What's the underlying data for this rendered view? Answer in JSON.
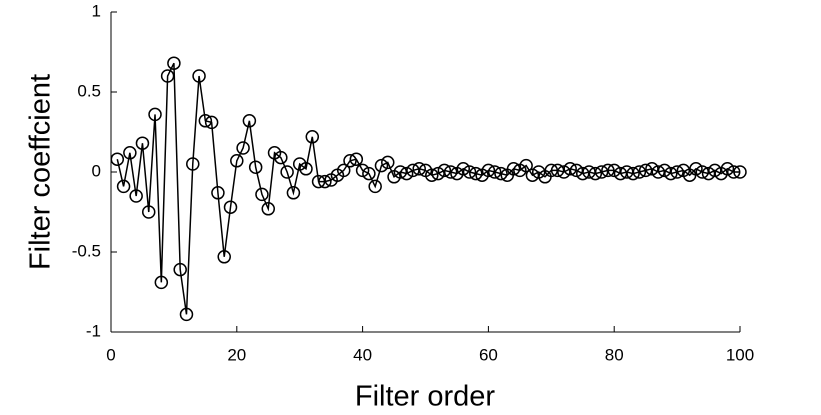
{
  "chart_data": {
    "type": "line",
    "xlabel": "Filter order",
    "ylabel": "Filter coeffcient",
    "x": [
      1,
      2,
      3,
      4,
      5,
      6,
      7,
      8,
      9,
      10,
      11,
      12,
      13,
      14,
      15,
      16,
      17,
      18,
      19,
      20,
      21,
      22,
      23,
      24,
      25,
      26,
      27,
      28,
      29,
      30,
      31,
      32,
      33,
      34,
      35,
      36,
      37,
      38,
      39,
      40,
      41,
      42,
      43,
      44,
      45,
      46,
      47,
      48,
      49,
      50,
      51,
      52,
      53,
      54,
      55,
      56,
      57,
      58,
      59,
      60,
      61,
      62,
      63,
      64,
      65,
      66,
      67,
      68,
      69,
      70,
      71,
      72,
      73,
      74,
      75,
      76,
      77,
      78,
      79,
      80,
      81,
      82,
      83,
      84,
      85,
      86,
      87,
      88,
      89,
      90,
      91,
      92,
      93,
      94,
      95,
      96,
      97,
      98,
      99,
      100
    ],
    "series": [
      {
        "name": "Filter coeffcient",
        "color": "#000000",
        "marker": "circle",
        "values": [
          0.08,
          -0.09,
          0.12,
          -0.15,
          0.18,
          -0.25,
          0.36,
          -0.69,
          0.6,
          0.68,
          -0.61,
          -0.89,
          0.05,
          0.6,
          0.32,
          0.31,
          -0.13,
          -0.53,
          -0.22,
          0.07,
          0.15,
          0.32,
          0.03,
          -0.14,
          -0.23,
          0.12,
          0.09,
          0.0,
          -0.13,
          0.05,
          0.02,
          0.22,
          -0.06,
          -0.06,
          -0.05,
          -0.02,
          0.01,
          0.07,
          0.08,
          0.01,
          -0.01,
          -0.09,
          0.04,
          0.06,
          -0.03,
          0.0,
          -0.01,
          0.01,
          0.02,
          0.01,
          -0.02,
          -0.01,
          0.01,
          0.0,
          -0.01,
          0.02,
          0.0,
          -0.01,
          -0.02,
          0.01,
          0.0,
          -0.01,
          -0.02,
          0.02,
          0.01,
          0.04,
          -0.02,
          0.0,
          -0.03,
          0.01,
          0.01,
          0.0,
          0.02,
          0.01,
          -0.01,
          0.0,
          -0.01,
          0.0,
          0.01,
          0.01,
          -0.01,
          0.0,
          -0.01,
          0.0,
          0.01,
          0.02,
          0.0,
          0.01,
          -0.01,
          0.0,
          0.01,
          -0.02,
          0.02,
          0.0,
          -0.01,
          0.01,
          -0.01,
          0.02,
          0.0,
          0.0
        ]
      }
    ],
    "xlim": [
      0,
      100
    ],
    "xticks": [
      0,
      20,
      40,
      60,
      80,
      100
    ],
    "ylim": [
      -1,
      1
    ],
    "yticks": [
      -1,
      -0.5,
      0,
      0.5,
      1
    ],
    "grid": false
  }
}
